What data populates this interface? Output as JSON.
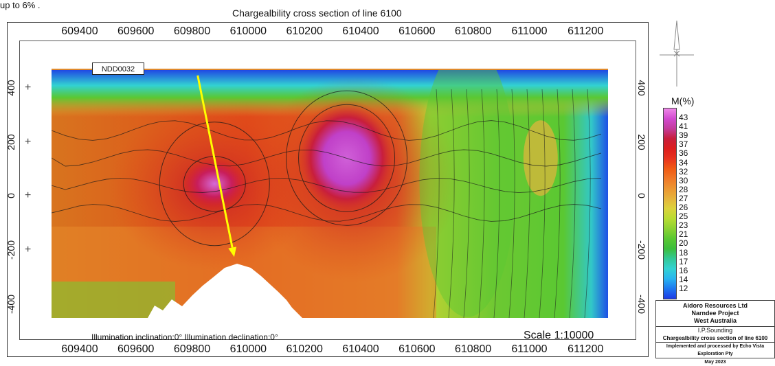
{
  "page": {
    "top_caption": "up to 6% .",
    "title": "Chargealbility cross section of line 6100"
  },
  "chart_data": {
    "type": "heatmap",
    "title": "Chargealbility cross section of line 6100",
    "x_ticks": [
      "609400",
      "609600",
      "609800",
      "610000",
      "610200",
      "610400",
      "610600",
      "610800",
      "611000",
      "611200"
    ],
    "x_values": [
      609400,
      609600,
      609800,
      610000,
      610200,
      610400,
      610600,
      610800,
      611000,
      611200
    ],
    "xlim": [
      609300,
      611280
    ],
    "y_ticks_left": [
      "400",
      "200",
      "0",
      "-200",
      "-400"
    ],
    "y_ticks_right": [
      "400",
      "200",
      "0",
      "-200",
      "-400"
    ],
    "y_values": [
      400,
      200,
      0,
      -200,
      -400
    ],
    "ylim": [
      -450,
      470
    ],
    "colorbar_title": "M(%)",
    "colorbar_labels": [
      "43",
      "41",
      "39",
      "37",
      "36",
      "34",
      "32",
      "30",
      "28",
      "27",
      "26",
      "25",
      "23",
      "21",
      "20",
      "18",
      "17",
      "16",
      "14",
      "12"
    ],
    "colorbar_colors": [
      "#ee88e8",
      "#d24ad0",
      "#c43c9c",
      "#c81e3c",
      "#dc1e1e",
      "#e8321e",
      "#f05a14",
      "#f07828",
      "#ec9632",
      "#e6b43c",
      "#dcd23c",
      "#b8dc32",
      "#8cd232",
      "#5ac832",
      "#3cbe3c",
      "#32c896",
      "#32d2d2",
      "#28b4f0",
      "#1e78f0",
      "#1e3ce6"
    ],
    "anomalies": [
      {
        "x": 610350,
        "y": 140,
        "value": 44
      },
      {
        "x": 609880,
        "y": 45,
        "value": 40
      }
    ],
    "drillhole": {
      "name": "NDD0032",
      "top": [
        609820,
        445
      ],
      "bottom": [
        609950,
        -225
      ]
    },
    "illumination": "Illumination inclination:0°   Illumination declination:0°",
    "scale": "Scale 1:10000"
  },
  "title_block": {
    "line1": "Aidoro Resources Ltd",
    "line2": "Narndee Project",
    "line3": "West Australia",
    "line4": "I.P.Sounding",
    "line5": "Chargealbility cross section of line 6100",
    "line6": "Implemented and processed by Echo Vista Exploration Pty",
    "line7": "May 2023"
  }
}
